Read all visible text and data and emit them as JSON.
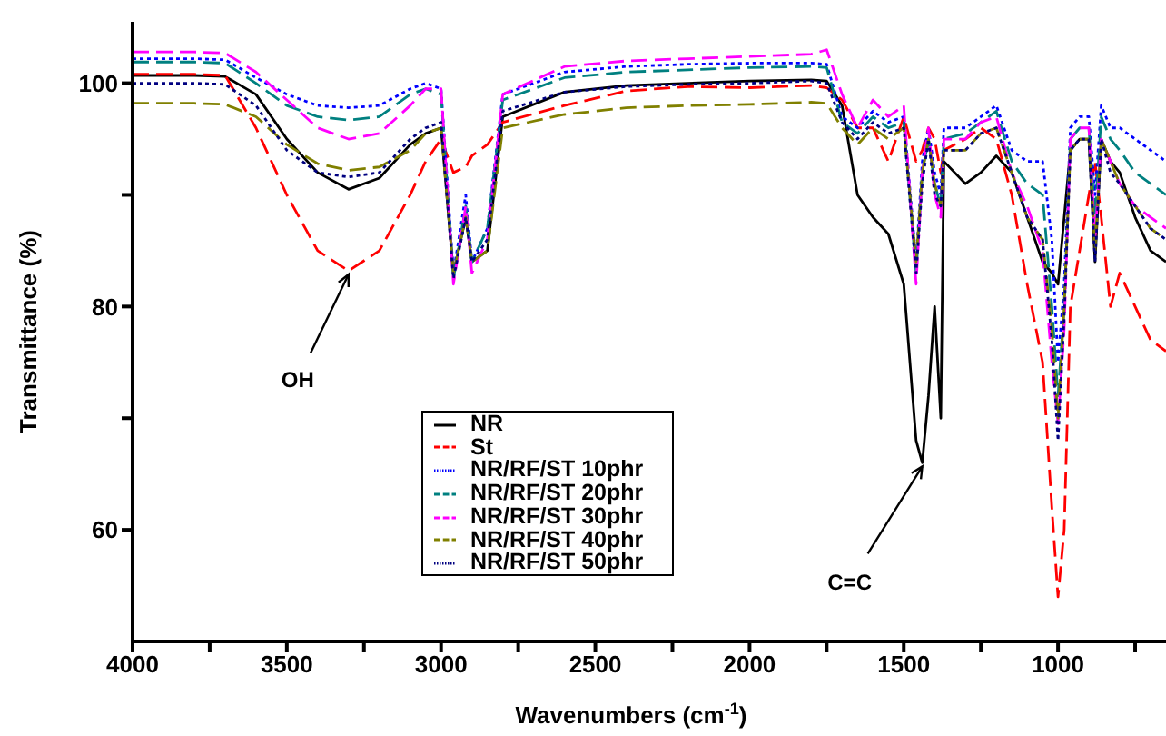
{
  "chart_data": {
    "type": "line",
    "xlabel": "Wavenumbers (cm$^{-1}$)",
    "ylabel": "Transmittance (%)",
    "x": [
      4000,
      3800,
      3700,
      3600,
      3500,
      3400,
      3300,
      3200,
      3100,
      3050,
      3000,
      2960,
      2920,
      2900,
      2850,
      2800,
      2600,
      2400,
      2200,
      2000,
      1800,
      1750,
      1700,
      1650,
      1600,
      1550,
      1500,
      1460,
      1440,
      1420,
      1400,
      1380,
      1370,
      1300,
      1250,
      1200,
      1150,
      1100,
      1050,
      1020,
      1000,
      980,
      960,
      930,
      900,
      880,
      860,
      830,
      800,
      750,
      700,
      650
    ],
    "series": [
      {
        "name": "NR",
        "color": "#000000",
        "line_style": "solid",
        "values": [
          100.7,
          100.7,
          100.6,
          99,
          95,
          92,
          90.5,
          91.5,
          94.5,
          95.5,
          96,
          83,
          88,
          84,
          85,
          97,
          99.2,
          99.8,
          100,
          100.2,
          100.3,
          100.2,
          98,
          90,
          88,
          86.5,
          82,
          68,
          66,
          72,
          80,
          70,
          93,
          91,
          92,
          93.5,
          92,
          88,
          84,
          83,
          82,
          88,
          94,
          95,
          95,
          84,
          95,
          93,
          92,
          88,
          85,
          84
        ]
      },
      {
        "name": "St",
        "color": "#ff0000",
        "line_style": "dashed",
        "values": [
          100.8,
          100.8,
          100.7,
          96,
          90,
          85,
          83.2,
          85,
          90,
          93,
          95,
          92,
          92.5,
          93.5,
          94.5,
          96.5,
          98,
          99.3,
          99.7,
          99.6,
          99.8,
          99.6,
          98.5,
          96,
          96,
          93,
          97,
          93,
          94,
          96,
          95,
          92,
          94,
          95,
          96,
          95,
          90,
          82,
          75,
          62,
          54,
          60,
          80,
          85,
          90,
          93,
          88,
          80,
          83,
          80,
          77,
          76
        ]
      },
      {
        "name": "NR/RF/ST 10phr",
        "color": "#0000ff",
        "line_style": "dotted",
        "values": [
          102.2,
          102.2,
          102.1,
          100.5,
          99,
          98,
          97.8,
          98,
          99.5,
          100,
          99.5,
          83,
          90,
          84,
          87,
          99,
          101,
          101.5,
          101.7,
          101.8,
          101.8,
          101.7,
          97,
          96,
          97.5,
          96.5,
          97,
          84,
          93,
          96,
          92,
          90,
          96,
          96,
          97,
          98,
          94,
          93,
          93,
          86,
          75,
          82,
          96,
          97,
          97,
          90,
          98,
          96,
          96,
          95,
          94,
          93
        ]
      },
      {
        "name": "NR/RF/ST 20phr",
        "color": "#008080",
        "line_style": "dashed",
        "values": [
          101.9,
          101.9,
          101.8,
          100,
          98,
          97,
          96.7,
          97,
          99,
          99.5,
          99,
          82.5,
          89,
          84,
          87,
          98.5,
          100.5,
          101,
          101.2,
          101.4,
          101.5,
          101.4,
          96.5,
          95.5,
          97,
          96,
          96.5,
          83,
          92,
          95,
          91,
          89,
          95,
          95.5,
          96.5,
          97.5,
          93,
          91,
          90,
          80,
          72,
          80,
          95,
          96,
          96,
          88,
          97,
          95,
          94,
          92,
          91,
          90
        ]
      },
      {
        "name": "NR/RF/ST 30phr",
        "color": "#ff00ff",
        "line_style": "dashed",
        "values": [
          102.8,
          102.8,
          102.7,
          101,
          98.5,
          96,
          95,
          95.5,
          98,
          99.5,
          99.5,
          82,
          89,
          83,
          86,
          99,
          101.5,
          102,
          102.2,
          102.4,
          102.6,
          103,
          99,
          96,
          98.5,
          97,
          98,
          82,
          92,
          96,
          90,
          88,
          95,
          95,
          96.5,
          97,
          92,
          89,
          85,
          75,
          69.5,
          78,
          95,
          96,
          96,
          86,
          95,
          93,
          91,
          89,
          88,
          87
        ]
      },
      {
        "name": "NR/RF/ST 40phr",
        "color": "#808000",
        "line_style": "dashed",
        "values": [
          98.2,
          98.2,
          98.1,
          97,
          94.5,
          92.8,
          92.2,
          92.5,
          94,
          95.5,
          96,
          83,
          88,
          84,
          85,
          96,
          97.2,
          97.8,
          98,
          98.1,
          98.3,
          98.2,
          96,
          94.5,
          96,
          95,
          96,
          84,
          92,
          95,
          91,
          89,
          94,
          94,
          95.5,
          96,
          92,
          88,
          86,
          78,
          70,
          80,
          94,
          95,
          95,
          85,
          95,
          93,
          91,
          89,
          87,
          86
        ]
      },
      {
        "name": "NR/RF/ST 50phr",
        "color": "#000080",
        "line_style": "dotted",
        "values": [
          100,
          100,
          99.9,
          98,
          94,
          92,
          91.6,
          92,
          95,
          96,
          96.5,
          82.5,
          88,
          84,
          86,
          97.5,
          99.2,
          99.7,
          99.9,
          100,
          100.2,
          100,
          96.5,
          95,
          96.5,
          95.5,
          96,
          83,
          91,
          95,
          90,
          89,
          94,
          94,
          95.5,
          96,
          92,
          88,
          86,
          77,
          68,
          79,
          94,
          95,
          95,
          84,
          95,
          92,
          91,
          89,
          87,
          86
        ]
      }
    ],
    "xlim": [
      4000,
      650
    ],
    "xticks": [
      4000,
      {
        "value": 3750,
        "label": null
      },
      3500,
      {
        "value": 3250,
        "label": null
      },
      3000,
      {
        "value": 2750,
        "label": null
      },
      2500,
      {
        "value": 2250,
        "label": null
      },
      2000,
      {
        "value": 1750,
        "label": null
      },
      1500,
      {
        "value": 1250,
        "label": null
      },
      1000,
      {
        "value": 750,
        "label": null
      }
    ],
    "ylim": [
      50,
      105.5
    ],
    "yticks": [
      60,
      {
        "value": 70,
        "label": null
      },
      80,
      {
        "value": 90,
        "label": null
      },
      100
    ],
    "grid": false,
    "legend": "bottom",
    "annotations": [
      {
        "text": "OH",
        "x": 3300,
        "y": 83.2
      },
      {
        "text": "C=C",
        "x": 1440,
        "y": 66
      }
    ]
  }
}
